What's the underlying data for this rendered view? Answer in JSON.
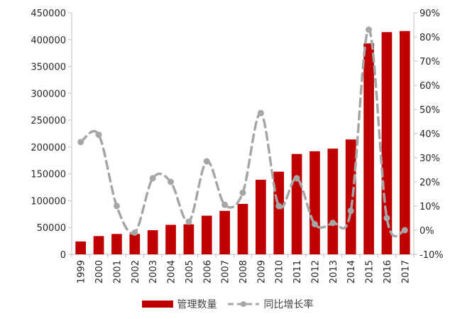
{
  "chart_data": {
    "type": "bar",
    "categories": [
      "1999",
      "2000",
      "2001",
      "2002",
      "2003",
      "2004",
      "2005",
      "2006",
      "2007",
      "2008",
      "2009",
      "2010",
      "2011",
      "2012",
      "2013",
      "2014",
      "2015",
      "2016",
      "2017"
    ],
    "series": [
      {
        "name": "管理数量",
        "type": "bar",
        "axis": "left",
        "color": "#c00000",
        "values": [
          24000,
          34000,
          38000,
          38000,
          45000,
          55000,
          56000,
          72000,
          81000,
          94000,
          139000,
          154000,
          187000,
          192000,
          197000,
          214000,
          393000,
          414000,
          416000
        ]
      },
      {
        "name": "同比增长率",
        "type": "line",
        "axis": "right",
        "color": "#a6a6a6",
        "values": [
          36.5,
          39.5,
          10,
          -1,
          21.5,
          20,
          3.5,
          28.5,
          10.5,
          15.5,
          48.5,
          10,
          21.5,
          2.5,
          3,
          8,
          83,
          5,
          0
        ]
      }
    ],
    "ylim_left": [
      0,
      450000
    ],
    "yticks_left": [
      "0",
      "50000",
      "100000",
      "150000",
      "200000",
      "250000",
      "300000",
      "350000",
      "400000",
      "450000"
    ],
    "ylim_right": [
      -10,
      90
    ],
    "yticks_right": [
      "-10%",
      "0%",
      "10%",
      "20%",
      "30%",
      "40%",
      "50%",
      "60%",
      "70%",
      "80%",
      "90%"
    ],
    "legend_position": "bottom",
    "grid": false
  }
}
